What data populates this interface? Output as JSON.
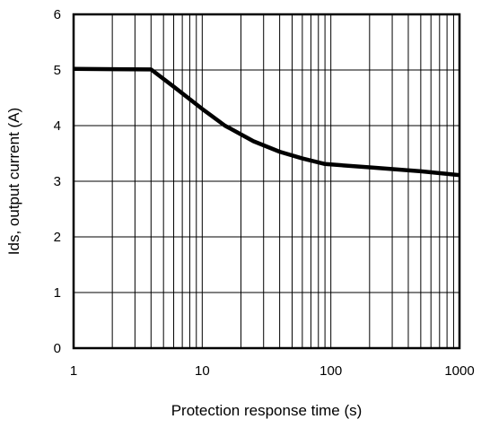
{
  "chart_data": {
    "type": "line",
    "title": "",
    "xlabel": "Protection response time (s)",
    "ylabel": "Ids, output current (A)",
    "xscale": "log",
    "xlim": [
      1,
      1000
    ],
    "ylim": [
      0,
      6
    ],
    "grid": true,
    "x_ticks": [
      {
        "value": 1,
        "label": "1"
      },
      {
        "value": 10,
        "label": "10"
      },
      {
        "value": 100,
        "label": "100"
      },
      {
        "value": 1000,
        "label": "1000"
      }
    ],
    "y_ticks": [
      {
        "value": 0,
        "label": "0"
      },
      {
        "value": 1,
        "label": "1"
      },
      {
        "value": 2,
        "label": "2"
      },
      {
        "value": 3,
        "label": "3"
      },
      {
        "value": 4,
        "label": "4"
      },
      {
        "value": 5,
        "label": "5"
      },
      {
        "value": 6,
        "label": "6"
      }
    ],
    "series": [
      {
        "color": "#000000",
        "x": [
          1,
          4,
          6,
          10,
          15,
          25,
          40,
          60,
          90,
          200,
          500,
          1000
        ],
        "y": [
          5.02,
          5.01,
          4.7,
          4.3,
          4.0,
          3.72,
          3.53,
          3.41,
          3.31,
          3.25,
          3.18,
          3.11
        ]
      }
    ]
  }
}
